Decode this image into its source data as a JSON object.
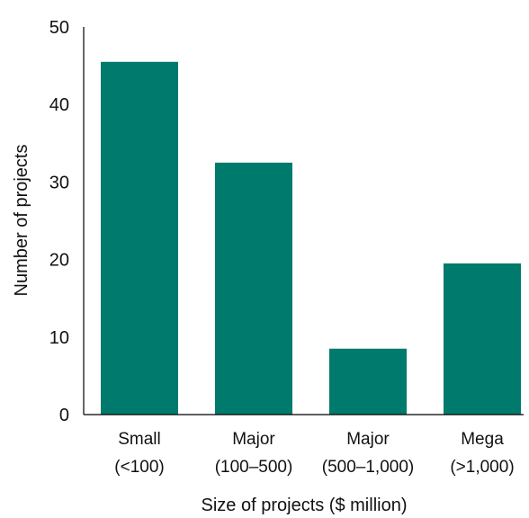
{
  "chart_data": {
    "type": "bar",
    "categories": [
      "Small (<100)",
      "Major (100–500)",
      "Major (500–1,000)",
      "Mega (>1,000)"
    ],
    "category_lines": [
      [
        "Small",
        "(<100)"
      ],
      [
        "Major",
        "(100–500)"
      ],
      [
        "Major",
        "(500–1,000)"
      ],
      [
        "Mega",
        "(>1,000)"
      ]
    ],
    "values": [
      45.5,
      32.5,
      8.5,
      19.5
    ],
    "title": "",
    "xlabel": "Size of projects ($ million)",
    "ylabel": "Number of projects",
    "ylim": [
      0,
      50
    ],
    "yticks": [
      0,
      10,
      20,
      30,
      40,
      50
    ],
    "ytick_labels": [
      "0",
      "10",
      "20",
      "30",
      "40",
      "50"
    ],
    "grid": false,
    "legend": "none",
    "bar_color": "#007A6C"
  }
}
